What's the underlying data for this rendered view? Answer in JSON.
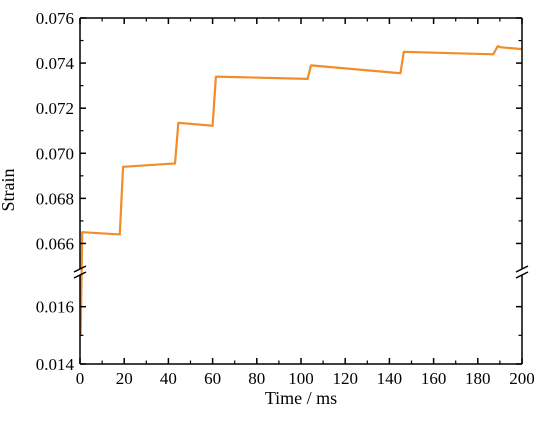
{
  "chart_data": {
    "type": "line",
    "title": "",
    "xlabel": "Time / ms",
    "ylabel": "Strain",
    "xlim": [
      0,
      200
    ],
    "x_ticks": [
      0,
      20,
      40,
      60,
      80,
      100,
      120,
      140,
      160,
      180,
      200
    ],
    "broken_y_axis": true,
    "y_segments": [
      {
        "range": [
          0.014,
          0.017
        ],
        "ticks": [
          0.014,
          0.016
        ],
        "tick_labels": [
          "0.014",
          "0.016"
        ]
      },
      {
        "range": [
          0.065,
          0.076
        ],
        "ticks": [
          0.066,
          0.068,
          0.07,
          0.072,
          0.074,
          0.076
        ],
        "tick_labels": [
          "0.066",
          "0.068",
          "0.070",
          "0.072",
          "0.074",
          "0.076"
        ]
      }
    ],
    "series": [
      {
        "color": "#f28c28",
        "points": [
          [
            0.3,
            0.015
          ],
          [
            1.0,
            0.0665
          ],
          [
            18.0,
            0.0664
          ],
          [
            19.5,
            0.0694
          ],
          [
            43.0,
            0.06955
          ],
          [
            44.5,
            0.07135
          ],
          [
            60.0,
            0.07122
          ],
          [
            61.5,
            0.0734
          ],
          [
            103.0,
            0.0733
          ],
          [
            104.5,
            0.0739
          ],
          [
            145.0,
            0.07355
          ],
          [
            146.5,
            0.0745
          ],
          [
            187.0,
            0.07439
          ],
          [
            189.0,
            0.07475
          ],
          [
            190.5,
            0.0747
          ],
          [
            200.0,
            0.07462
          ]
        ]
      }
    ],
    "grid": false,
    "legend": "none"
  }
}
